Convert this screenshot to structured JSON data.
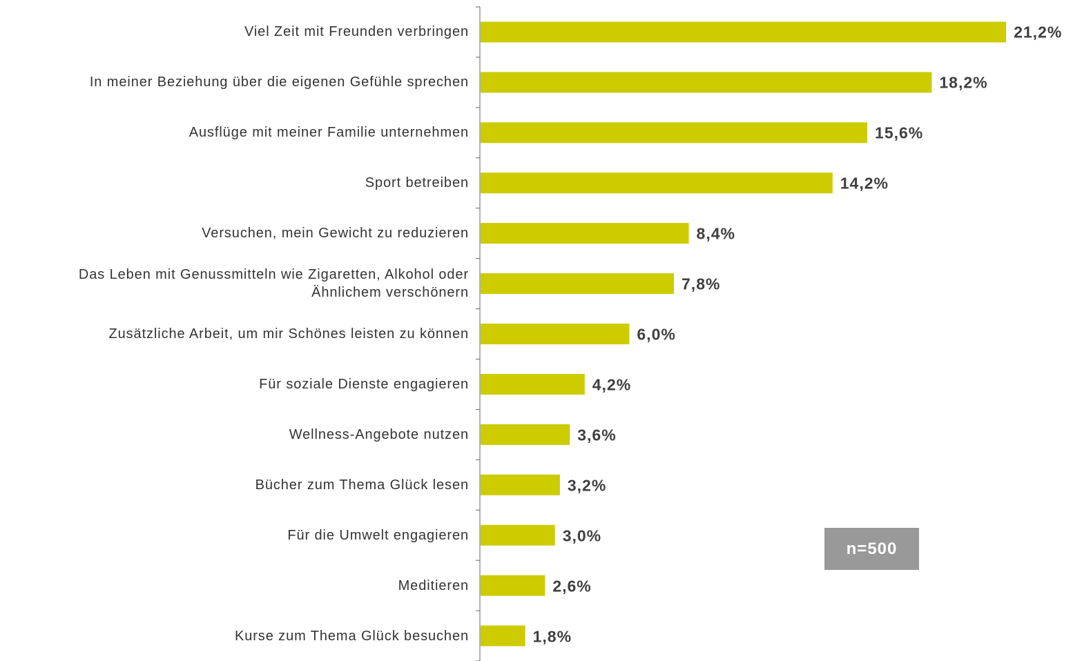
{
  "chart_data": {
    "type": "bar",
    "orientation": "horizontal",
    "categories": [
      "Viel Zeit mit Freunden verbringen",
      "In meiner Beziehung über die eigenen Gefühle sprechen",
      "Ausflüge mit meiner Familie unternehmen",
      "Sport betreiben",
      "Versuchen, mein Gewicht zu reduzieren",
      "Das Leben mit Genussmitteln wie Zigaretten, Alkohol oder\nÄhnlichem verschönern",
      "Zusätzliche Arbeit, um mir Schönes leisten zu können",
      "Für soziale Dienste engagieren",
      "Wellness-Angebote nutzen",
      "Bücher zum Thema Glück lesen",
      "Für die Umwelt engagieren",
      "Meditieren",
      "Kurse zum Thema Glück besuchen"
    ],
    "values": [
      21.2,
      18.2,
      15.6,
      14.2,
      8.4,
      7.8,
      6.0,
      4.2,
      3.6,
      3.2,
      3.0,
      2.6,
      1.8
    ],
    "value_labels": [
      "21,2%",
      "18,2%",
      "15,6%",
      "14,2%",
      "8,4%",
      "7,8%",
      "6,0%",
      "4,2%",
      "3,6%",
      "3,2%",
      "3,0%",
      "2,6%",
      "1,8%"
    ],
    "color": "#cccc00",
    "annotation": "n=500"
  }
}
